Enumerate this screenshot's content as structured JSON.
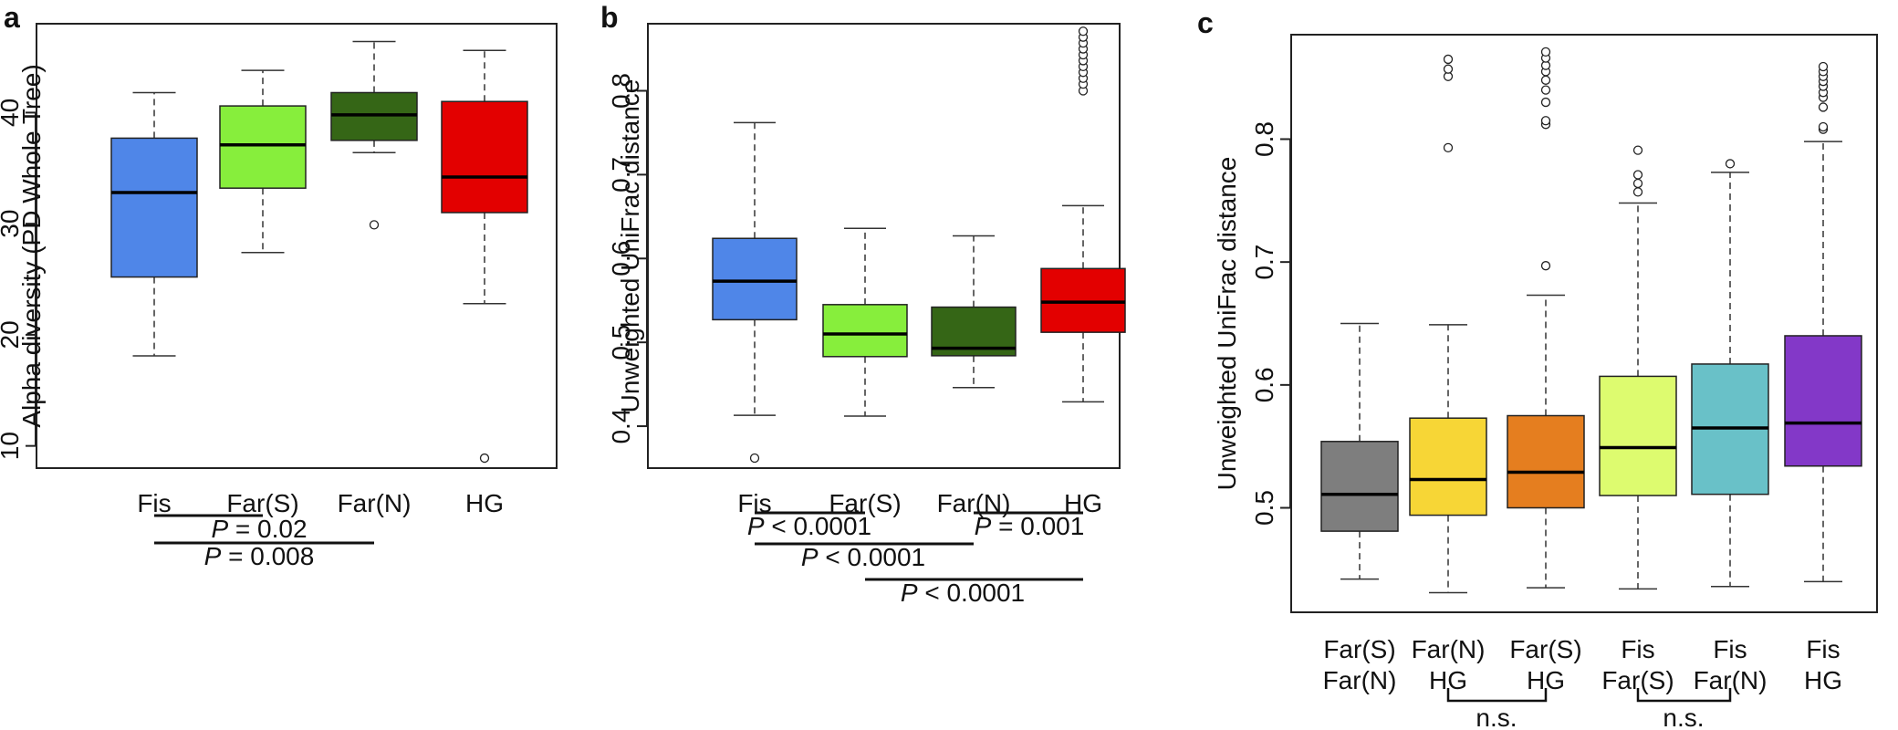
{
  "chart_data": [
    {
      "id": "a",
      "type": "boxplot",
      "panel_label": "a",
      "ylabel": "Alpha diversity (PD Whole Tree)",
      "ylim": [
        8,
        48
      ],
      "yticks": [
        10,
        20,
        30,
        40
      ],
      "groups": [
        {
          "label": [
            "Fis"
          ],
          "color": "#4f86e8",
          "whisker_low": 18.1,
          "q1": 25.2,
          "median": 32.8,
          "q3": 37.7,
          "whisker_high": 41.8,
          "outliers": []
        },
        {
          "label": [
            "Far(S)"
          ],
          "color": "#87ee3c",
          "whisker_low": 27.4,
          "q1": 33.2,
          "median": 37.1,
          "q3": 40.6,
          "whisker_high": 43.8,
          "outliers": []
        },
        {
          "label": [
            "Far(N)"
          ],
          "color": "#356616",
          "whisker_low": 36.4,
          "q1": 37.5,
          "median": 39.8,
          "q3": 41.8,
          "whisker_high": 46.4,
          "outliers": [
            29.9
          ]
        },
        {
          "label": [
            "HG"
          ],
          "color": "#e30000",
          "whisker_low": 22.8,
          "q1": 31.0,
          "median": 34.2,
          "q3": 41.0,
          "whisker_high": 45.6,
          "outliers": [
            8.9
          ]
        }
      ],
      "comparisons": [
        {
          "from": 0,
          "to": 1,
          "p_var": "P",
          "p_rest": " = 0.02"
        },
        {
          "from": 0,
          "to": 2,
          "p_var": "P",
          "p_rest": " = 0.008"
        }
      ]
    },
    {
      "id": "b",
      "type": "boxplot",
      "panel_label": "b",
      "ylabel": "Unweighted UniFrac distance",
      "ylim": [
        0.35,
        0.88
      ],
      "yticks": [
        0.4,
        0.5,
        0.6,
        0.7,
        0.8
      ],
      "groups": [
        {
          "label": [
            "Fis"
          ],
          "color": "#4f86e8",
          "whisker_low": 0.413,
          "q1": 0.527,
          "median": 0.573,
          "q3": 0.624,
          "whisker_high": 0.762,
          "outliers": [
            0.362
          ]
        },
        {
          "label": [
            "Far(S)"
          ],
          "color": "#87ee3c",
          "whisker_low": 0.412,
          "q1": 0.483,
          "median": 0.51,
          "q3": 0.545,
          "whisker_high": 0.636,
          "outliers": []
        },
        {
          "label": [
            "Far(N)"
          ],
          "color": "#356616",
          "whisker_low": 0.446,
          "q1": 0.484,
          "median": 0.493,
          "q3": 0.542,
          "whisker_high": 0.627,
          "outliers": []
        },
        {
          "label": [
            "HG"
          ],
          "color": "#e30000",
          "whisker_low": 0.429,
          "q1": 0.512,
          "median": 0.548,
          "q3": 0.588,
          "whisker_high": 0.663,
          "outliers": [
            0.8,
            0.808,
            0.815,
            0.822,
            0.829,
            0.836,
            0.843,
            0.85,
            0.857,
            0.864,
            0.871
          ]
        }
      ],
      "comparisons": [
        {
          "from": 0,
          "to": 1,
          "p_var": "P",
          "p_rest": " < 0.0001"
        },
        {
          "from": 2,
          "to": 3,
          "p_var": "P",
          "p_rest": " = 0.001"
        },
        {
          "from": 0,
          "to": 2,
          "p_var": "P",
          "p_rest": " < 0.0001"
        },
        {
          "from": 1,
          "to": 3,
          "p_var": "P",
          "p_rest": " < 0.0001"
        }
      ]
    },
    {
      "id": "c",
      "type": "boxplot",
      "panel_label": "c",
      "ylabel": "Unweighted UniFrac distance",
      "ylim": [
        0.415,
        0.885
      ],
      "yticks": [
        0.5,
        0.6,
        0.7,
        0.8
      ],
      "groups": [
        {
          "label": [
            "Far(S)",
            "Far(N)"
          ],
          "color": "#7e7e7e",
          "whisker_low": 0.442,
          "q1": 0.481,
          "median": 0.511,
          "q3": 0.554,
          "whisker_high": 0.65,
          "outliers": []
        },
        {
          "label": [
            "Far(N)",
            "HG"
          ],
          "color": "#f7d636",
          "whisker_low": 0.431,
          "q1": 0.494,
          "median": 0.523,
          "q3": 0.573,
          "whisker_high": 0.649,
          "outliers": [
            0.793,
            0.851,
            0.857,
            0.865
          ]
        },
        {
          "label": [
            "Far(S)",
            "HG"
          ],
          "color": "#e57e1f",
          "whisker_low": 0.435,
          "q1": 0.5,
          "median": 0.529,
          "q3": 0.575,
          "whisker_high": 0.673,
          "outliers": [
            0.697,
            0.812,
            0.815,
            0.83,
            0.84,
            0.848,
            0.855,
            0.86,
            0.866,
            0.871
          ]
        },
        {
          "label": [
            "Fis",
            "Far(S)"
          ],
          "color": "#ddfb6f",
          "whisker_low": 0.434,
          "q1": 0.51,
          "median": 0.549,
          "q3": 0.607,
          "whisker_high": 0.748,
          "outliers": [
            0.757,
            0.764,
            0.771,
            0.791
          ]
        },
        {
          "label": [
            "Fis",
            "Far(N)"
          ],
          "color": "#69c1c8",
          "whisker_low": 0.436,
          "q1": 0.511,
          "median": 0.565,
          "q3": 0.617,
          "whisker_high": 0.773,
          "outliers": [
            0.78
          ]
        },
        {
          "label": [
            "Fis",
            "HG"
          ],
          "color": "#8338c8",
          "whisker_low": 0.44,
          "q1": 0.534,
          "median": 0.569,
          "q3": 0.64,
          "whisker_high": 0.798,
          "outliers": [
            0.808,
            0.81,
            0.826,
            0.834,
            0.838,
            0.843,
            0.847,
            0.851,
            0.855,
            0.859
          ]
        }
      ],
      "comparisons": [
        {
          "from": 1,
          "to": 2,
          "text": "n.s."
        },
        {
          "from": 3,
          "to": 4,
          "text": "n.s."
        }
      ]
    }
  ]
}
